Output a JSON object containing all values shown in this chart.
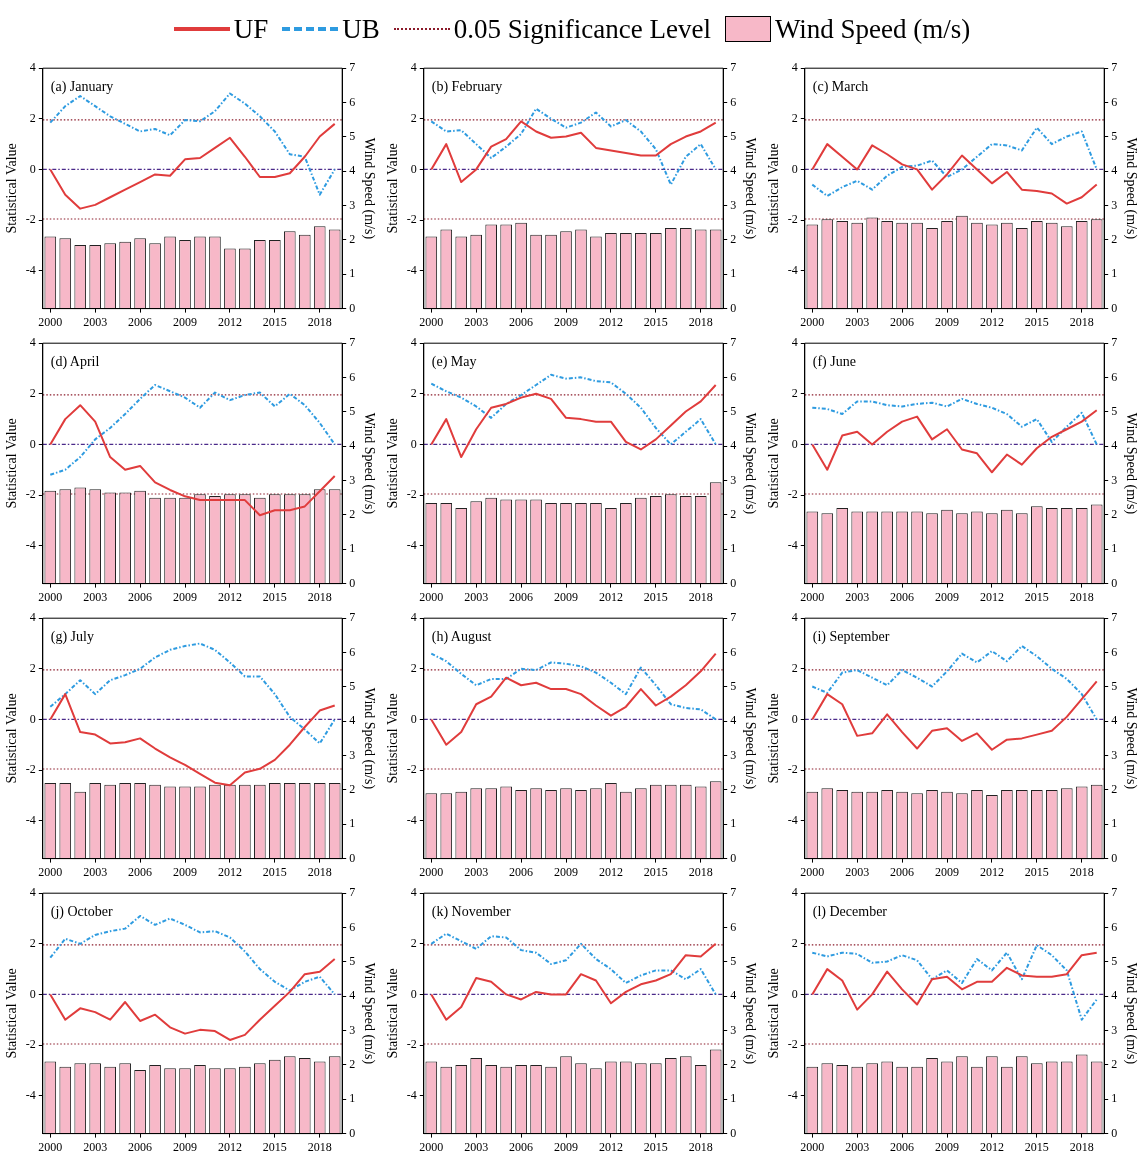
{
  "chart_data": [
    {
      "type": "line",
      "title": "(a) January",
      "ylabel": "Statistical Value",
      "y2label": "Wind Speed (m/s)",
      "legend": "top",
      "categories": [
        "2000",
        null,
        null,
        "2003",
        null,
        null,
        "2006",
        null,
        null,
        "2009",
        null,
        null,
        "2012",
        null,
        null,
        "2015",
        null,
        null,
        "2018",
        null
      ],
      "ylim": [
        -5.5,
        4
      ],
      "yticks": [
        -4,
        -2,
        0,
        2,
        4
      ],
      "y2lim": [
        0,
        7
      ],
      "y2ticks": [
        0,
        1,
        2,
        3,
        4,
        5,
        6,
        7
      ],
      "series": [
        {
          "name": "UF",
          "color": "#e03c3c",
          "line_style": "solid",
          "values": [
            0,
            -1.0,
            -1.55,
            -1.4,
            -1.1,
            -0.8,
            -0.5,
            -0.2,
            -0.25,
            0.4,
            0.45,
            0.85,
            1.25,
            0.5,
            -0.3,
            -0.3,
            -0.15,
            0.5,
            1.3,
            1.8
          ]
        },
        {
          "name": "UB",
          "color": "#2e9be0",
          "line_style": "dashed",
          "values": [
            1.85,
            2.5,
            2.9,
            2.5,
            2.1,
            1.8,
            1.5,
            1.6,
            1.35,
            1.95,
            1.9,
            2.3,
            3.0,
            2.6,
            2.1,
            1.5,
            0.6,
            0.5,
            -1.0,
            0
          ]
        },
        {
          "name": "Wind Speed (m/s)",
          "type": "bar",
          "axis": "y2",
          "color": "#f7b8c8",
          "values": [
            2.1,
            2.05,
            1.85,
            1.85,
            1.9,
            1.95,
            2.05,
            1.9,
            2.1,
            2.0,
            2.1,
            2.1,
            1.75,
            1.75,
            2.0,
            2.0,
            2.25,
            2.15,
            2.4,
            2.3
          ]
        }
      ],
      "ref_lines": [
        {
          "axis": "y",
          "value": 1.96,
          "label": "0.05 Significance Level",
          "color": "#8b1a2a",
          "line_style": "dotted"
        },
        {
          "axis": "y",
          "value": -1.96,
          "color": "#8b1a2a",
          "line_style": "dotted"
        },
        {
          "axis": "y",
          "value": 0,
          "color": "#4b2a8a",
          "line_style": "dashed"
        }
      ]
    },
    {
      "type": "line",
      "title": "(b) February",
      "ylabel": "Statistical Value",
      "y2label": "Wind Speed (m/s)",
      "categories": [
        "2000",
        null,
        null,
        "2003",
        null,
        null,
        "2006",
        null,
        null,
        "2009",
        null,
        null,
        "2012",
        null,
        null,
        "2015",
        null,
        null,
        "2018",
        null
      ],
      "ylim": [
        -5.5,
        4
      ],
      "yticks": [
        -4,
        -2,
        0,
        2,
        4
      ],
      "y2lim": [
        0,
        7
      ],
      "y2ticks": [
        0,
        1,
        2,
        3,
        4,
        5,
        6,
        7
      ],
      "series": [
        {
          "type": "line",
          "color": "#e03c3c",
          "line_style": "solid",
          "values": [
            0,
            1.0,
            -0.5,
            0,
            0.9,
            1.2,
            1.9,
            1.5,
            1.25,
            1.3,
            1.45,
            0.85,
            0.75,
            0.65,
            0.55,
            0.55,
            1.0,
            1.3,
            1.5,
            1.85
          ]
        },
        {
          "type": "line",
          "color": "#2e9be0",
          "line_style": "dashed",
          "values": [
            1.9,
            1.5,
            1.55,
            1.0,
            0.45,
            0.9,
            1.4,
            2.4,
            2.0,
            1.65,
            1.85,
            2.25,
            1.7,
            1.95,
            1.5,
            0.8,
            -0.6,
            0.5,
            1.0,
            0
          ]
        },
        {
          "type": "bar",
          "axis": "y2",
          "color": "#f7b8c8",
          "values": [
            2.1,
            2.3,
            2.1,
            2.15,
            2.45,
            2.45,
            2.5,
            2.15,
            2.15,
            2.25,
            2.3,
            2.1,
            2.2,
            2.2,
            2.2,
            2.2,
            2.35,
            2.35,
            2.3,
            2.3
          ]
        }
      ],
      "ref_lines": [
        {
          "axis": "y",
          "value": 1.96,
          "color": "#8b1a2a",
          "line_style": "dotted"
        },
        {
          "axis": "y",
          "value": -1.96,
          "color": "#8b1a2a",
          "line_style": "dotted"
        },
        {
          "axis": "y",
          "value": 0,
          "color": "#4b2a8a",
          "line_style": "dashed"
        }
      ]
    },
    {
      "type": "line",
      "title": "(c) March",
      "ylabel": "Statistical Value",
      "y2label": "Wind Speed (m/s)",
      "categories": [
        "2000",
        null,
        null,
        "2003",
        null,
        null,
        "2006",
        null,
        null,
        "2009",
        null,
        null,
        "2012",
        null,
        null,
        "2015",
        null,
        null,
        "2018",
        null
      ],
      "ylim": [
        -5.5,
        4
      ],
      "yticks": [
        -4,
        -2,
        0,
        2,
        4
      ],
      "y2lim": [
        0,
        7
      ],
      "y2ticks": [
        0,
        1,
        2,
        3,
        4,
        5,
        6,
        7
      ],
      "series": [
        {
          "type": "line",
          "color": "#e03c3c",
          "line_style": "solid",
          "values": [
            0,
            1.0,
            0.5,
            0,
            0.95,
            0.6,
            0.2,
            0,
            -0.8,
            -0.2,
            0.55,
            0,
            -0.55,
            -0.1,
            -0.8,
            -0.85,
            -0.95,
            -1.35,
            -1.1,
            -0.6
          ]
        },
        {
          "type": "line",
          "color": "#2e9be0",
          "line_style": "dashed",
          "values": [
            -0.6,
            -1.05,
            -0.7,
            -0.45,
            -0.8,
            -0.25,
            0.1,
            0.15,
            0.35,
            -0.3,
            0,
            0.5,
            1.0,
            0.95,
            0.75,
            1.65,
            1.0,
            1.3,
            1.5,
            0
          ]
        },
        {
          "type": "bar",
          "axis": "y2",
          "color": "#f7b8c8",
          "values": [
            2.45,
            2.6,
            2.55,
            2.5,
            2.65,
            2.55,
            2.5,
            2.5,
            2.35,
            2.55,
            2.7,
            2.5,
            2.45,
            2.5,
            2.35,
            2.55,
            2.5,
            2.4,
            2.55,
            2.6
          ]
        }
      ],
      "ref_lines": [
        {
          "axis": "y",
          "value": 1.96,
          "color": "#8b1a2a",
          "line_style": "dotted"
        },
        {
          "axis": "y",
          "value": -1.96,
          "color": "#8b1a2a",
          "line_style": "dotted"
        },
        {
          "axis": "y",
          "value": 0,
          "color": "#4b2a8a",
          "line_style": "dashed"
        }
      ]
    },
    {
      "type": "line",
      "title": "(d) April",
      "ylabel": "Statistical Value",
      "y2label": "Wind Speed (m/s)",
      "categories": [
        "2000",
        null,
        null,
        "2003",
        null,
        null,
        "2006",
        null,
        null,
        "2009",
        null,
        null,
        "2012",
        null,
        null,
        "2015",
        null,
        null,
        "2018",
        null
      ],
      "ylim": [
        -5.5,
        4
      ],
      "yticks": [
        -4,
        -2,
        0,
        2,
        4
      ],
      "y2lim": [
        0,
        7
      ],
      "y2ticks": [
        0,
        1,
        2,
        3,
        4,
        5,
        6,
        7
      ],
      "series": [
        {
          "type": "line",
          "color": "#e03c3c",
          "line_style": "solid",
          "values": [
            0,
            1.0,
            1.55,
            0.9,
            -0.5,
            -1.0,
            -0.85,
            -1.5,
            -1.8,
            -2.05,
            -2.2,
            -2.2,
            -2.2,
            -2.2,
            -2.8,
            -2.6,
            -2.6,
            -2.45,
            -1.85,
            -1.25
          ]
        },
        {
          "type": "line",
          "color": "#2e9be0",
          "line_style": "dashed",
          "values": [
            -1.2,
            -1.0,
            -0.5,
            0.2,
            0.65,
            1.2,
            1.8,
            2.35,
            2.1,
            1.85,
            1.45,
            2.05,
            1.75,
            1.95,
            2.05,
            1.5,
            2.0,
            1.55,
            0.85,
            0
          ]
        },
        {
          "type": "bar",
          "axis": "y2",
          "color": "#f7b8c8",
          "values": [
            2.7,
            2.75,
            2.8,
            2.75,
            2.65,
            2.65,
            2.7,
            2.5,
            2.5,
            2.5,
            2.6,
            2.55,
            2.6,
            2.6,
            2.5,
            2.6,
            2.6,
            2.6,
            2.75,
            2.75
          ]
        }
      ],
      "ref_lines": [
        {
          "axis": "y",
          "value": 1.96,
          "color": "#8b1a2a",
          "line_style": "dotted"
        },
        {
          "axis": "y",
          "value": -1.96,
          "color": "#8b1a2a",
          "line_style": "dotted"
        },
        {
          "axis": "y",
          "value": 0,
          "color": "#4b2a8a",
          "line_style": "dashed"
        }
      ]
    },
    {
      "type": "line",
      "title": "(e) May",
      "ylabel": "Statistical Value",
      "y2label": "Wind Speed (m/s)",
      "categories": [
        "2000",
        null,
        null,
        "2003",
        null,
        null,
        "2006",
        null,
        null,
        "2009",
        null,
        null,
        "2012",
        null,
        null,
        "2015",
        null,
        null,
        "2018",
        null
      ],
      "ylim": [
        -5.5,
        4
      ],
      "yticks": [
        -4,
        -2,
        0,
        2,
        4
      ],
      "y2lim": [
        0,
        7
      ],
      "y2ticks": [
        0,
        1,
        2,
        3,
        4,
        5,
        6,
        7
      ],
      "series": [
        {
          "type": "line",
          "color": "#e03c3c",
          "line_style": "solid",
          "values": [
            0,
            1.0,
            -0.5,
            0.6,
            1.45,
            1.6,
            1.85,
            2.0,
            1.8,
            1.05,
            1.0,
            0.9,
            0.9,
            0.1,
            -0.2,
            0.2,
            0.75,
            1.3,
            1.7,
            2.35
          ]
        },
        {
          "type": "line",
          "color": "#2e9be0",
          "line_style": "dashed",
          "values": [
            2.4,
            2.1,
            1.85,
            1.5,
            1.05,
            1.6,
            1.95,
            2.35,
            2.75,
            2.6,
            2.65,
            2.5,
            2.45,
            2.0,
            1.45,
            0.65,
            0,
            0.5,
            1.0,
            0
          ]
        },
        {
          "type": "bar",
          "axis": "y2",
          "color": "#f7b8c8",
          "values": [
            2.35,
            2.35,
            2.2,
            2.4,
            2.5,
            2.45,
            2.45,
            2.45,
            2.35,
            2.35,
            2.35,
            2.35,
            2.2,
            2.35,
            2.5,
            2.55,
            2.6,
            2.55,
            2.55,
            2.95
          ]
        }
      ],
      "ref_lines": [
        {
          "axis": "y",
          "value": 1.96,
          "color": "#8b1a2a",
          "line_style": "dotted"
        },
        {
          "axis": "y",
          "value": -1.96,
          "color": "#8b1a2a",
          "line_style": "dotted"
        },
        {
          "axis": "y",
          "value": 0,
          "color": "#4b2a8a",
          "line_style": "dashed"
        }
      ]
    },
    {
      "type": "line",
      "title": "(f) June",
      "ylabel": "Statistical Value",
      "y2label": "Wind Speed (m/s)",
      "categories": [
        "2000",
        null,
        null,
        "2003",
        null,
        null,
        "2006",
        null,
        null,
        "2009",
        null,
        null,
        "2012",
        null,
        null,
        "2015",
        null,
        null,
        "2018",
        null
      ],
      "ylim": [
        -5.5,
        4
      ],
      "yticks": [
        -4,
        -2,
        0,
        2,
        4
      ],
      "y2lim": [
        0,
        7
      ],
      "y2ticks": [
        0,
        1,
        2,
        3,
        4,
        5,
        6,
        7
      ],
      "series": [
        {
          "type": "line",
          "color": "#e03c3c",
          "line_style": "solid",
          "values": [
            0,
            -1.0,
            0.35,
            0.5,
            0,
            0.5,
            0.9,
            1.1,
            0.2,
            0.6,
            -0.2,
            -0.35,
            -1.1,
            -0.4,
            -0.8,
            -0.15,
            0.3,
            0.6,
            0.9,
            1.35
          ]
        },
        {
          "type": "line",
          "color": "#2e9be0",
          "line_style": "dashed",
          "values": [
            1.45,
            1.4,
            1.2,
            1.7,
            1.7,
            1.55,
            1.5,
            1.6,
            1.65,
            1.5,
            1.8,
            1.6,
            1.45,
            1.2,
            0.7,
            1.0,
            0.1,
            0.7,
            1.25,
            0
          ]
        },
        {
          "type": "bar",
          "axis": "y2",
          "color": "#f7b8c8",
          "values": [
            2.1,
            2.05,
            2.2,
            2.1,
            2.1,
            2.1,
            2.1,
            2.1,
            2.05,
            2.15,
            2.05,
            2.1,
            2.05,
            2.15,
            2.05,
            2.25,
            2.2,
            2.2,
            2.2,
            2.3
          ]
        }
      ],
      "ref_lines": [
        {
          "axis": "y",
          "value": 1.96,
          "color": "#8b1a2a",
          "line_style": "dotted"
        },
        {
          "axis": "y",
          "value": -1.96,
          "color": "#8b1a2a",
          "line_style": "dotted"
        },
        {
          "axis": "y",
          "value": 0,
          "color": "#4b2a8a",
          "line_style": "dashed"
        }
      ]
    },
    {
      "type": "line",
      "title": "(g) July",
      "ylabel": "Statistical Value",
      "y2label": "Wind Speed (m/s)",
      "categories": [
        "2000",
        null,
        null,
        "2003",
        null,
        null,
        "2006",
        null,
        null,
        "2009",
        null,
        null,
        "2012",
        null,
        null,
        "2015",
        null,
        null,
        "2018",
        null
      ],
      "ylim": [
        -5.5,
        4
      ],
      "yticks": [
        -4,
        -2,
        0,
        2,
        4
      ],
      "y2lim": [
        0,
        7
      ],
      "y2ticks": [
        0,
        1,
        2,
        3,
        4,
        5,
        6,
        7
      ],
      "series": [
        {
          "type": "line",
          "color": "#e03c3c",
          "line_style": "solid",
          "values": [
            0,
            1.0,
            -0.5,
            -0.6,
            -0.95,
            -0.9,
            -0.75,
            -1.15,
            -1.5,
            -1.8,
            -2.15,
            -2.5,
            -2.6,
            -2.1,
            -1.95,
            -1.6,
            -1.0,
            -0.3,
            0.35,
            0.55
          ]
        },
        {
          "type": "line",
          "color": "#2e9be0",
          "line_style": "dashed",
          "values": [
            0.5,
            1.0,
            1.55,
            1.0,
            1.55,
            1.75,
            2.0,
            2.45,
            2.75,
            2.9,
            3.0,
            2.75,
            2.25,
            1.7,
            1.7,
            1.0,
            0.1,
            -0.4,
            -0.95,
            0
          ]
        },
        {
          "type": "bar",
          "axis": "y2",
          "color": "#f7b8c8",
          "values": [
            2.2,
            2.2,
            1.95,
            2.2,
            2.15,
            2.2,
            2.2,
            2.15,
            2.1,
            2.1,
            2.1,
            2.15,
            2.15,
            2.15,
            2.15,
            2.2,
            2.2,
            2.2,
            2.2,
            2.2
          ]
        }
      ],
      "ref_lines": [
        {
          "axis": "y",
          "value": 1.96,
          "color": "#8b1a2a",
          "line_style": "dotted"
        },
        {
          "axis": "y",
          "value": -1.96,
          "color": "#8b1a2a",
          "line_style": "dotted"
        },
        {
          "axis": "y",
          "value": 0,
          "color": "#4b2a8a",
          "line_style": "dashed"
        }
      ]
    },
    {
      "type": "line",
      "title": "(h) August",
      "ylabel": "Statistical Value",
      "y2label": "Wind Speed (m/s)",
      "categories": [
        "2000",
        null,
        null,
        "2003",
        null,
        null,
        "2006",
        null,
        null,
        "2009",
        null,
        null,
        "2012",
        null,
        null,
        "2015",
        null,
        null,
        "2018",
        null
      ],
      "ylim": [
        -5.5,
        4
      ],
      "yticks": [
        -4,
        -2,
        0,
        2,
        4
      ],
      "y2lim": [
        0,
        7
      ],
      "y2ticks": [
        0,
        1,
        2,
        3,
        4,
        5,
        6,
        7
      ],
      "series": [
        {
          "type": "line",
          "color": "#e03c3c",
          "line_style": "solid",
          "values": [
            0,
            -1.0,
            -0.5,
            0.6,
            0.9,
            1.65,
            1.35,
            1.45,
            1.2,
            1.2,
            1.0,
            0.55,
            0.15,
            0.5,
            1.2,
            0.55,
            0.9,
            1.35,
            1.9,
            2.6
          ]
        },
        {
          "type": "line",
          "color": "#2e9be0",
          "line_style": "dashed",
          "values": [
            2.6,
            2.3,
            1.8,
            1.35,
            1.6,
            1.6,
            2.0,
            1.95,
            2.25,
            2.2,
            2.1,
            1.85,
            1.45,
            1.0,
            2.05,
            1.35,
            0.6,
            0.45,
            0.4,
            0
          ]
        },
        {
          "type": "bar",
          "axis": "y2",
          "color": "#f7b8c8",
          "values": [
            1.9,
            1.9,
            1.95,
            2.05,
            2.05,
            2.1,
            2.0,
            2.05,
            2.0,
            2.05,
            2.0,
            2.05,
            2.2,
            1.95,
            2.05,
            2.15,
            2.15,
            2.15,
            2.1,
            2.25
          ]
        }
      ],
      "ref_lines": [
        {
          "axis": "y",
          "value": 1.96,
          "color": "#8b1a2a",
          "line_style": "dotted"
        },
        {
          "axis": "y",
          "value": -1.96,
          "color": "#8b1a2a",
          "line_style": "dotted"
        },
        {
          "axis": "y",
          "value": 0,
          "color": "#4b2a8a",
          "line_style": "dashed"
        }
      ]
    },
    {
      "type": "line",
      "title": "(i) September",
      "ylabel": "Statistical Value",
      "y2label": "Wind Speed (m/s)",
      "categories": [
        "2000",
        null,
        null,
        "2003",
        null,
        null,
        "2006",
        null,
        null,
        "2009",
        null,
        null,
        "2012",
        null,
        null,
        "2015",
        null,
        null,
        "2018",
        null
      ],
      "ylim": [
        -5.5,
        4
      ],
      "yticks": [
        -4,
        -2,
        0,
        2,
        4
      ],
      "y2lim": [
        0,
        7
      ],
      "y2ticks": [
        0,
        1,
        2,
        3,
        4,
        5,
        6,
        7
      ],
      "series": [
        {
          "type": "line",
          "color": "#e03c3c",
          "line_style": "solid",
          "values": [
            0,
            1.0,
            0.6,
            -0.65,
            -0.55,
            0.2,
            -0.5,
            -1.15,
            -0.45,
            -0.35,
            -0.85,
            -0.55,
            -1.2,
            -0.8,
            -0.75,
            -0.6,
            -0.45,
            0.1,
            0.8,
            1.5
          ]
        },
        {
          "type": "line",
          "color": "#2e9be0",
          "line_style": "dashed",
          "values": [
            1.3,
            1.05,
            1.85,
            1.95,
            1.65,
            1.35,
            1.95,
            1.65,
            1.3,
            1.9,
            2.6,
            2.25,
            2.7,
            2.3,
            2.9,
            2.5,
            2.0,
            1.6,
            1.0,
            0
          ]
        },
        {
          "type": "bar",
          "axis": "y2",
          "color": "#f7b8c8",
          "values": [
            1.95,
            2.05,
            2.0,
            1.95,
            1.95,
            2.0,
            1.95,
            1.9,
            2.0,
            1.95,
            1.9,
            2.0,
            1.85,
            2.0,
            2.0,
            2.0,
            2.0,
            2.05,
            2.1,
            2.15
          ]
        }
      ],
      "ref_lines": [
        {
          "axis": "y",
          "value": 1.96,
          "color": "#8b1a2a",
          "line_style": "dotted"
        },
        {
          "axis": "y",
          "value": -1.96,
          "color": "#8b1a2a",
          "line_style": "dotted"
        },
        {
          "axis": "y",
          "value": 0,
          "color": "#4b2a8a",
          "line_style": "dashed"
        }
      ]
    },
    {
      "type": "line",
      "title": "(j) October",
      "ylabel": "Statistical Value",
      "y2label": "Wind Speed (m/s)",
      "categories": [
        "2000",
        null,
        null,
        "2003",
        null,
        null,
        "2006",
        null,
        null,
        "2009",
        null,
        null,
        "2012",
        null,
        null,
        "2015",
        null,
        null,
        "2018",
        null
      ],
      "ylim": [
        -5.5,
        4
      ],
      "yticks": [
        -4,
        -2,
        0,
        2,
        4
      ],
      "y2lim": [
        0,
        7
      ],
      "y2ticks": [
        0,
        1,
        2,
        3,
        4,
        5,
        6,
        7
      ],
      "series": [
        {
          "type": "line",
          "color": "#e03c3c",
          "line_style": "solid",
          "values": [
            0,
            -1.0,
            -0.55,
            -0.7,
            -1.0,
            -0.3,
            -1.05,
            -0.8,
            -1.3,
            -1.55,
            -1.4,
            -1.45,
            -1.8,
            -1.6,
            -1.0,
            -0.45,
            0.1,
            0.8,
            0.9,
            1.4
          ]
        },
        {
          "type": "line",
          "color": "#2e9be0",
          "line_style": "dashed",
          "values": [
            1.45,
            2.2,
            2.0,
            2.35,
            2.5,
            2.6,
            3.1,
            2.75,
            3.0,
            2.75,
            2.45,
            2.5,
            2.25,
            1.7,
            1.0,
            0.5,
            0.15,
            0.5,
            0.7,
            0
          ]
        },
        {
          "type": "bar",
          "axis": "y2",
          "color": "#f7b8c8",
          "values": [
            2.1,
            1.95,
            2.05,
            2.05,
            1.95,
            2.05,
            1.85,
            2.0,
            1.9,
            1.9,
            2.0,
            1.9,
            1.9,
            1.95,
            2.05,
            2.15,
            2.25,
            2.2,
            2.1,
            2.25
          ]
        }
      ],
      "ref_lines": [
        {
          "axis": "y",
          "value": 1.96,
          "color": "#8b1a2a",
          "line_style": "dotted"
        },
        {
          "axis": "y",
          "value": -1.96,
          "color": "#8b1a2a",
          "line_style": "dotted"
        },
        {
          "axis": "y",
          "value": 0,
          "color": "#4b2a8a",
          "line_style": "dashed"
        }
      ]
    },
    {
      "type": "line",
      "title": "(k) November",
      "ylabel": "Statistical Value",
      "y2label": "Wind Speed (m/s)",
      "categories": [
        "2000",
        null,
        null,
        "2003",
        null,
        null,
        "2006",
        null,
        null,
        "2009",
        null,
        null,
        "2012",
        null,
        null,
        "2015",
        null,
        null,
        "2018",
        null
      ],
      "ylim": [
        -5.5,
        4
      ],
      "yticks": [
        -4,
        -2,
        0,
        2,
        4
      ],
      "y2lim": [
        0,
        7
      ],
      "y2ticks": [
        0,
        1,
        2,
        3,
        4,
        5,
        6,
        7
      ],
      "series": [
        {
          "type": "line",
          "color": "#e03c3c",
          "line_style": "solid",
          "values": [
            0,
            -1.0,
            -0.5,
            0.65,
            0.5,
            0,
            -0.2,
            0.1,
            0,
            0,
            0.8,
            0.55,
            -0.35,
            0.1,
            0.4,
            0.55,
            0.8,
            1.55,
            1.5,
            2.0
          ]
        },
        {
          "type": "line",
          "color": "#2e9be0",
          "line_style": "dashed",
          "values": [
            2.0,
            2.4,
            2.1,
            1.8,
            2.3,
            2.25,
            1.75,
            1.65,
            1.2,
            1.35,
            2.0,
            1.4,
            1.0,
            0.45,
            0.75,
            0.95,
            0.95,
            0.6,
            1.0,
            0
          ]
        },
        {
          "type": "bar",
          "axis": "y2",
          "color": "#f7b8c8",
          "values": [
            2.1,
            1.95,
            2.0,
            2.2,
            2.0,
            1.95,
            2.0,
            2.0,
            1.95,
            2.25,
            2.05,
            1.9,
            2.1,
            2.1,
            2.05,
            2.05,
            2.2,
            2.25,
            2.0,
            2.45
          ]
        }
      ],
      "ref_lines": [
        {
          "axis": "y",
          "value": 1.96,
          "color": "#8b1a2a",
          "line_style": "dotted"
        },
        {
          "axis": "y",
          "value": -1.96,
          "color": "#8b1a2a",
          "line_style": "dotted"
        },
        {
          "axis": "y",
          "value": 0,
          "color": "#4b2a8a",
          "line_style": "dashed"
        }
      ]
    },
    {
      "type": "line",
      "title": "(l) December",
      "ylabel": "Statistical Value",
      "y2label": "Wind Speed (m/s)",
      "categories": [
        "2000",
        null,
        null,
        "2003",
        null,
        null,
        "2006",
        null,
        null,
        "2009",
        null,
        null,
        "2012",
        null,
        null,
        "2015",
        null,
        null,
        "2018",
        null
      ],
      "ylim": [
        -5.5,
        4
      ],
      "yticks": [
        -4,
        -2,
        0,
        2,
        4
      ],
      "y2lim": [
        0,
        7
      ],
      "y2ticks": [
        0,
        1,
        2,
        3,
        4,
        5,
        6,
        7
      ],
      "series": [
        {
          "type": "line",
          "color": "#e03c3c",
          "line_style": "solid",
          "values": [
            0,
            1.0,
            0.55,
            -0.6,
            0,
            0.9,
            0.2,
            -0.4,
            0.6,
            0.7,
            0.2,
            0.5,
            0.5,
            1.05,
            0.75,
            0.7,
            0.7,
            0.8,
            1.55,
            1.65
          ]
        },
        {
          "type": "line",
          "color": "#2e9be0",
          "line_style": "dashed",
          "values": [
            1.65,
            1.5,
            1.65,
            1.6,
            1.25,
            1.3,
            1.55,
            1.35,
            0.6,
            0.95,
            0.45,
            1.4,
            0.95,
            1.65,
            0.6,
            1.95,
            1.55,
            0.95,
            -1.0,
            -0.2
          ]
        },
        {
          "type": "bar",
          "axis": "y2",
          "color": "#f7b8c8",
          "values": [
            1.95,
            2.05,
            2.0,
            1.95,
            2.05,
            2.1,
            1.95,
            1.95,
            2.2,
            2.1,
            2.25,
            1.95,
            2.25,
            1.95,
            2.25,
            2.05,
            2.1,
            2.1,
            2.3,
            2.1
          ]
        }
      ],
      "ref_lines": [
        {
          "axis": "y",
          "value": 1.96,
          "color": "#8b1a2a",
          "line_style": "dotted"
        },
        {
          "axis": "y",
          "value": -1.96,
          "color": "#8b1a2a",
          "line_style": "dotted"
        },
        {
          "axis": "y",
          "value": 0,
          "color": "#4b2a8a",
          "line_style": "dashed"
        }
      ]
    }
  ]
}
